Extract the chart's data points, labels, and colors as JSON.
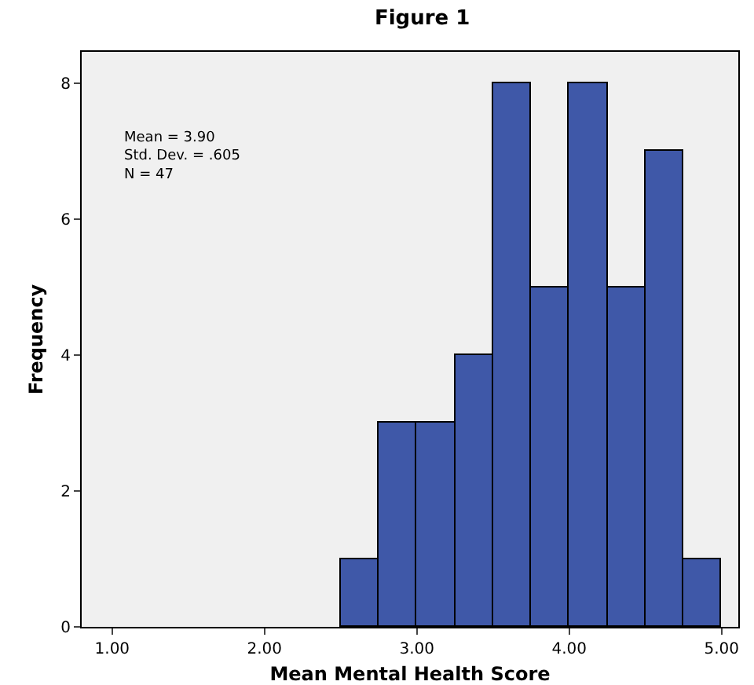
{
  "chart_data": {
    "type": "histogram",
    "title": "Figure 1",
    "xlabel": "Mean Mental Health Score",
    "ylabel": "Frequency",
    "bins": [
      2.5,
      2.75,
      3.0,
      3.25,
      3.5,
      3.75,
      4.0,
      4.25,
      4.5,
      4.75,
      5.0
    ],
    "values": [
      1,
      3,
      3,
      4,
      8,
      5,
      8,
      5,
      7,
      1
    ],
    "color": "#3f58a8",
    "xlim": [
      0.8,
      5.11
    ],
    "xticks": [
      {
        "value": 1,
        "label": "1.00"
      },
      {
        "value": 2,
        "label": "2.00"
      },
      {
        "value": 3,
        "label": "3.00"
      },
      {
        "value": 4,
        "label": "4.00"
      },
      {
        "value": 5,
        "label": "5.00"
      }
    ],
    "ylim": [
      0,
      8.46
    ],
    "yticks": [
      0,
      2,
      4,
      6,
      8
    ],
    "grid": false,
    "annotations": [
      "Mean = 3.90\nStd. Dev. = .605\nN = 47"
    ]
  }
}
